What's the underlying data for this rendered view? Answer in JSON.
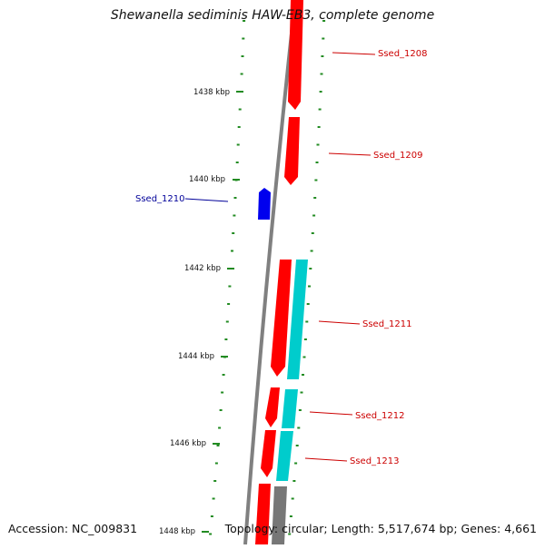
{
  "title": "Shewanella sediminis HAW-EB3, complete genome",
  "footer": {
    "accession": "Accession: NC_009831",
    "summary": "Topology: circular; Length: 5,517,674 bp; Genes: 4,661"
  },
  "kbp_labels": [
    "1438 kbp",
    "1440 kbp",
    "1442 kbp",
    "1444 kbp",
    "1446 kbp",
    "1448 kbp"
  ],
  "genes": [
    {
      "label": "Ssed_1208",
      "strand": "+",
      "color": "#cc0000"
    },
    {
      "label": "Ssed_1209",
      "strand": "+",
      "color": "#cc0000"
    },
    {
      "label": "Ssed_1210",
      "strand": "-",
      "color": "#000099"
    },
    {
      "label": "Ssed_1211",
      "strand": "+",
      "color": "#cc0000"
    },
    {
      "label": "Ssed_1212",
      "strand": "+",
      "color": "#cc0000"
    },
    {
      "label": "Ssed_1213",
      "strand": "+",
      "color": "#cc0000"
    }
  ],
  "colors": {
    "gene_forward": "#ff0000",
    "gene_reverse": "#0000ee",
    "cds_feature": "#00cccc",
    "other_feature": "#777777",
    "backbone": "#808080",
    "tick": "#228b22"
  }
}
